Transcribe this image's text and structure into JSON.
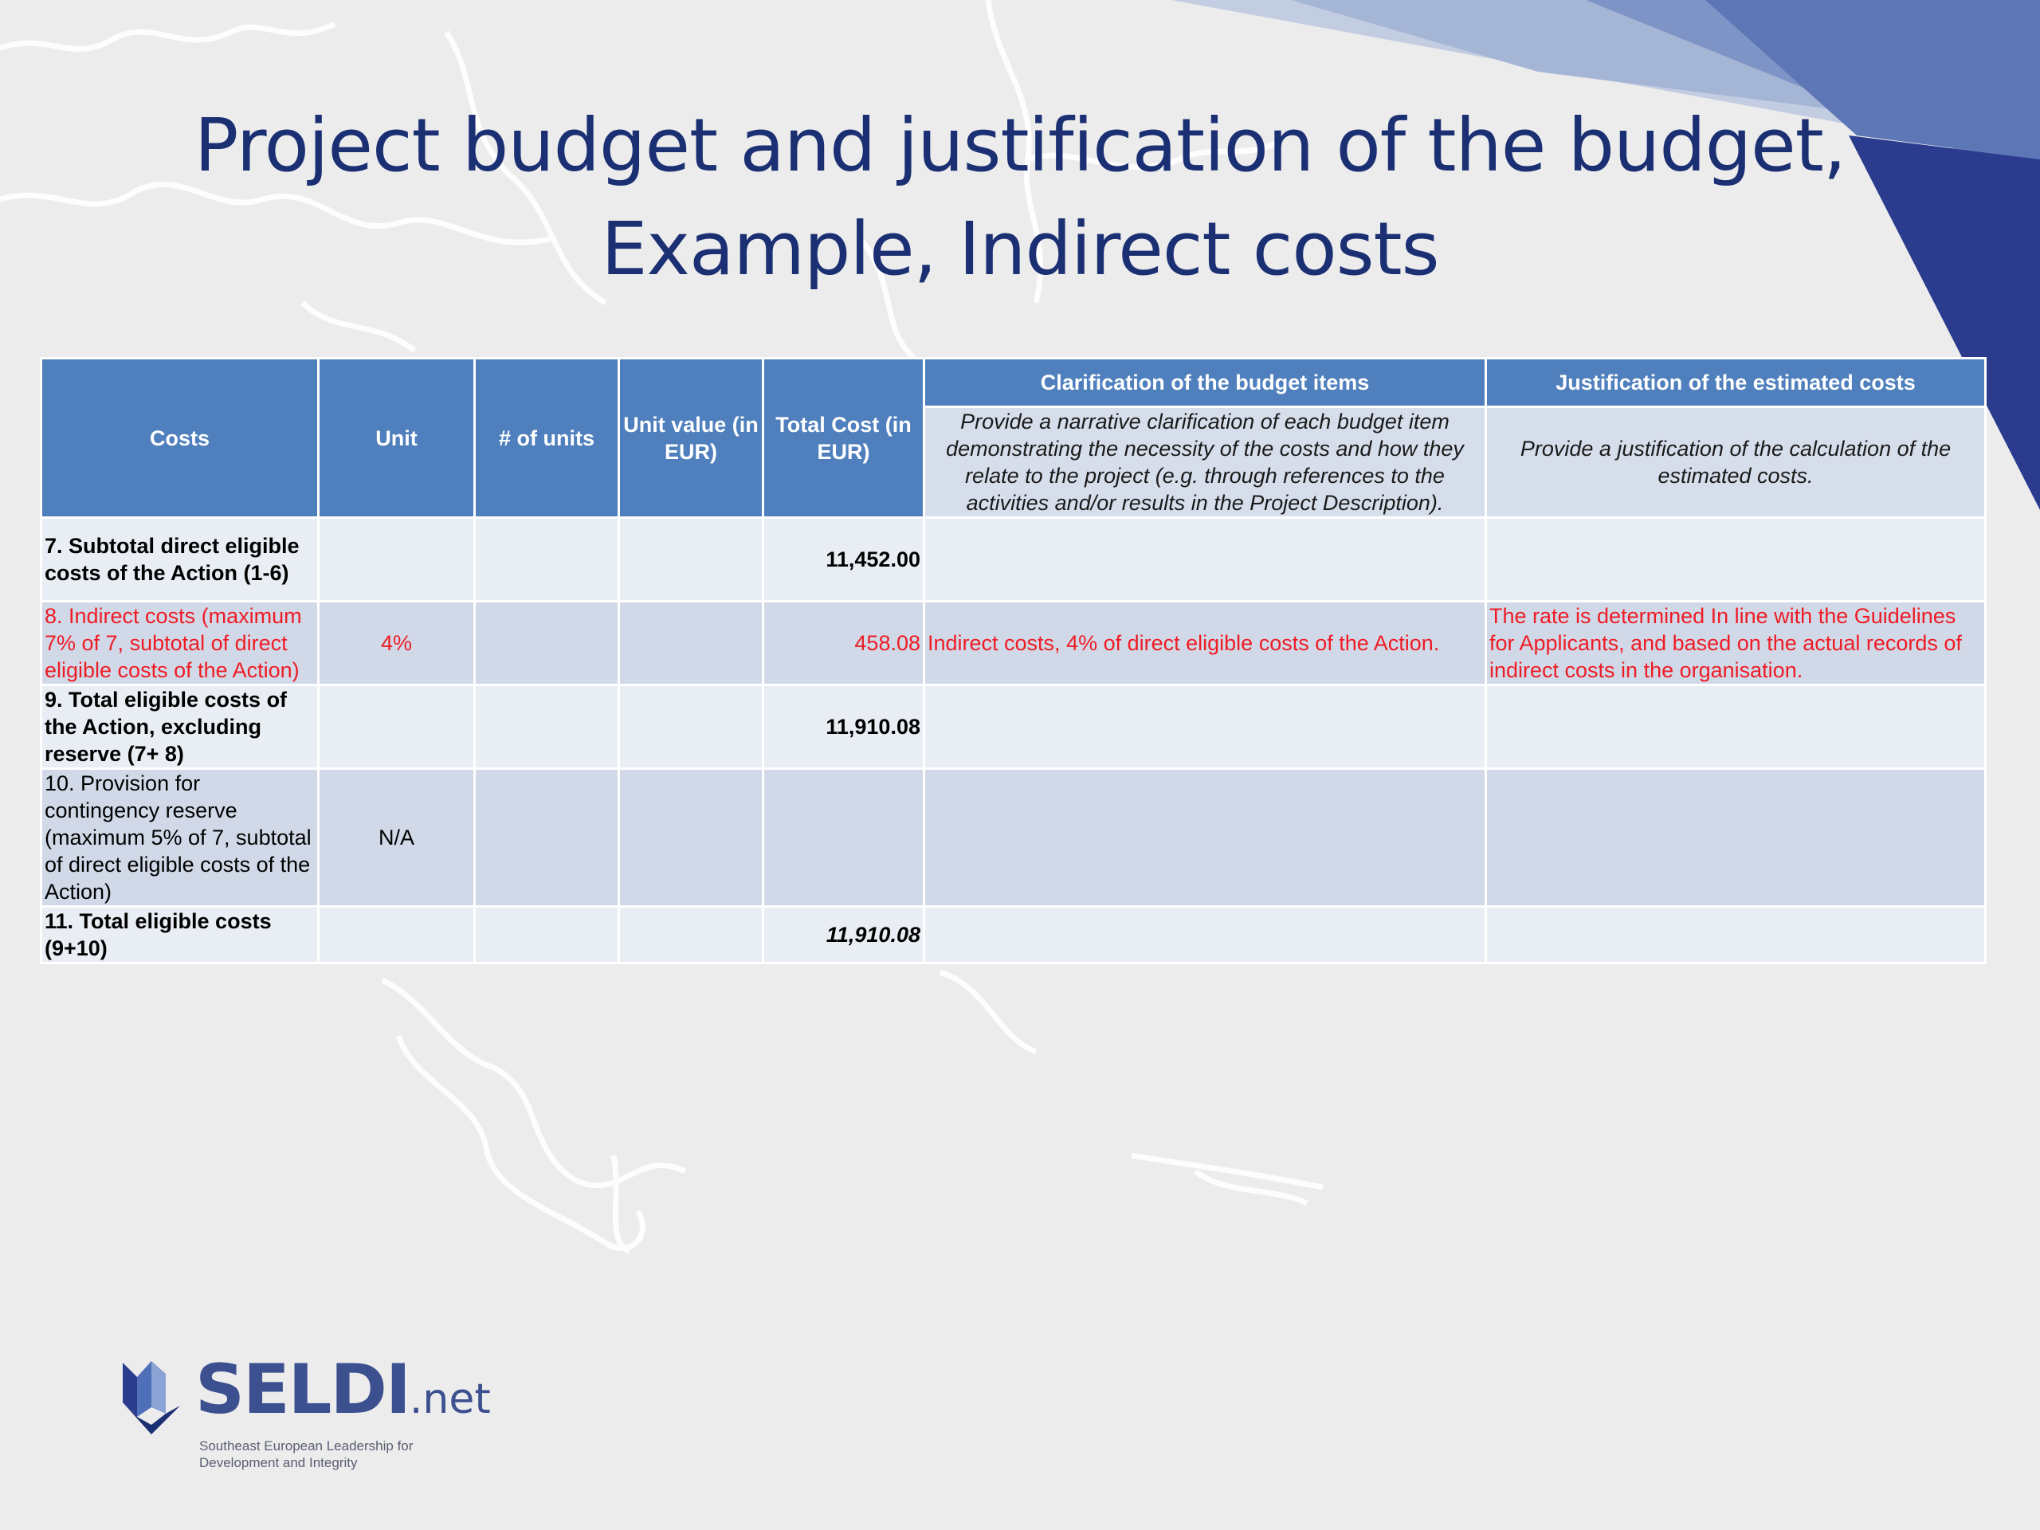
{
  "slide": {
    "title_line1": "Project budget and justification of the budget,",
    "title_line2": "Example, Indirect costs"
  },
  "colors": {
    "title": "#1b2f73",
    "header_bg": "#4f80bd",
    "row_light": "#e9edf4",
    "row_dark": "#d1d9e8",
    "highlight_text": "#ee1c25",
    "accent_triangle": "#2b3c8f"
  },
  "table": {
    "headers": {
      "costs": "Costs",
      "unit": "Unit",
      "num_units": "# of units",
      "unit_value": "Unit value (in EUR)",
      "total_cost": "Total Cost (in EUR)",
      "clarification": "Clarification of the budget items",
      "justification": "Justification of the estimated costs"
    },
    "instructions": {
      "clarification": "Provide a narrative clarification of each budget item demonstrating the necessity of the costs and how they relate to the project (e.g. through references to the activities and/or results in the Project Description).",
      "justification": "Provide a justification of the calculation of the estimated costs."
    },
    "rows": [
      {
        "cost": "7.  Subtotal direct eligible costs of the Action (1-6)",
        "unit": "",
        "num_units": "",
        "unit_value": "",
        "total": "11,452.00",
        "clarification": "",
        "justification": ""
      },
      {
        "cost": "8. Indirect costs (maximum 7% of  7, subtotal of direct eligible costs of the Action)",
        "unit": "4%",
        "num_units": "",
        "unit_value": "",
        "total": "458.08",
        "clarification": "Indirect costs, 4% of direct eligible costs of the Action.",
        "justification": "The rate is determined In line with the Guidelines for Applicants, and based on the actual records of indirect costs in the organisation."
      },
      {
        "cost": "9. Total eligible costs of the Action, excluding reserve (7+ 8)",
        "unit": "",
        "num_units": "",
        "unit_value": "",
        "total": "11,910.08",
        "clarification": "",
        "justification": ""
      },
      {
        "cost": "10.  Provision for contingency reserve (maximum 5% of  7, subtotal of direct eligible costs of the Action)",
        "unit": "N/A",
        "num_units": "",
        "unit_value": "",
        "total": "",
        "clarification": "",
        "justification": ""
      },
      {
        "cost": "11. Total eligible costs (9+10)",
        "unit": "",
        "num_units": "",
        "unit_value": "",
        "total": "11,910.08",
        "clarification": "",
        "justification": ""
      }
    ]
  },
  "logo": {
    "name": "SELDI",
    "suffix": ".net",
    "tagline": "Southeast European Leadership for Development and Integrity"
  }
}
